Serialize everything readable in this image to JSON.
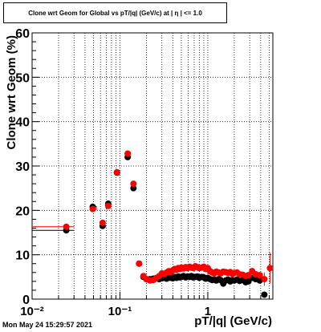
{
  "title": "Clone wrt Geom for Global vs pT/|q| (GeV/c) at | η | <= 1.0",
  "timestamp": "Mon May 24 15:29:57 2021",
  "colors": {
    "series_black": "#000000",
    "series_red": "#ff0000"
  },
  "chart_data": {
    "type": "scatter",
    "xlabel": "pT/|q| (GeV/c)",
    "ylabel": "Clone wrt Geom (%)",
    "x_scale": "log",
    "xlim": [
      0.01,
      5.5
    ],
    "ylim": [
      0,
      60
    ],
    "grid": true,
    "x_tick_labels": [
      "10⁻²",
      "10⁻¹",
      "1"
    ],
    "y_tick_labels": [
      "0",
      "10",
      "20",
      "30",
      "40",
      "50",
      "60"
    ],
    "series": [
      {
        "color": "#000000",
        "x": [
          0.0245,
          0.049,
          0.0635,
          0.0735,
          0.0925,
          0.1225,
          0.1425,
          0.165,
          0.185,
          0.2,
          0.22,
          0.24,
          0.26,
          0.28,
          0.3,
          0.32,
          0.34,
          0.36,
          0.38,
          0.4,
          0.42,
          0.44,
          0.46,
          0.48,
          0.5,
          0.53,
          0.56,
          0.59,
          0.62,
          0.65,
          0.68,
          0.72,
          0.76,
          0.8,
          0.85,
          0.9,
          0.95,
          1.0,
          1.06,
          1.12,
          1.18,
          1.25,
          1.33,
          1.4,
          1.5,
          1.6,
          1.7,
          1.8,
          1.9,
          2.0,
          2.15,
          2.3,
          2.5,
          2.7,
          2.9,
          3.2,
          3.5,
          3.9,
          4.4
        ],
        "y": [
          15.5,
          20.8,
          16.5,
          21.5,
          28.5,
          32.0,
          25.0,
          8.0,
          5.0,
          4.5,
          4.5,
          4.6,
          4.7,
          4.5,
          4.7,
          4.8,
          4.6,
          4.9,
          4.8,
          4.7,
          5.0,
          4.8,
          5.1,
          4.9,
          5.0,
          5.2,
          4.9,
          5.1,
          5.0,
          5.2,
          4.9,
          5.0,
          5.1,
          4.8,
          5.0,
          4.9,
          4.6,
          4.8,
          4.5,
          4.3,
          4.4,
          4.2,
          4.5,
          4.3,
          3.5,
          4.2,
          4.4,
          4.0,
          4.3,
          4.2,
          4.4,
          4.1,
          4.3,
          3.8,
          4.0,
          4.8,
          4.5,
          4.2,
          1.0
        ],
        "xerr": [
          [
            0.01,
            0.03
          ],
          [
            0.045,
            0.055
          ],
          null,
          null,
          [
            0.085,
            0.1
          ],
          [
            0.115,
            0.13
          ],
          null,
          null,
          null,
          null,
          null,
          null,
          null,
          null,
          null,
          null,
          null,
          null,
          null,
          null,
          null,
          null,
          null,
          null,
          null,
          null,
          null,
          null,
          null,
          null,
          null,
          null,
          null,
          null,
          null,
          null,
          null,
          null,
          null,
          null,
          null,
          null,
          null,
          null,
          null,
          null,
          null,
          null,
          null,
          null,
          null,
          null,
          null,
          null,
          null,
          null,
          null,
          null,
          null
        ]
      },
      {
        "color": "#ff0000",
        "x": [
          0.0245,
          0.049,
          0.0635,
          0.0735,
          0.0925,
          0.1225,
          0.1425,
          0.165,
          0.185,
          0.2,
          0.22,
          0.24,
          0.26,
          0.28,
          0.3,
          0.32,
          0.34,
          0.36,
          0.38,
          0.4,
          0.42,
          0.44,
          0.46,
          0.48,
          0.5,
          0.53,
          0.56,
          0.59,
          0.62,
          0.65,
          0.68,
          0.72,
          0.76,
          0.8,
          0.85,
          0.9,
          0.95,
          1.0,
          1.06,
          1.12,
          1.18,
          1.25,
          1.33,
          1.4,
          1.5,
          1.6,
          1.7,
          1.8,
          1.9,
          2.0,
          2.15,
          2.3,
          2.5,
          2.7,
          2.9,
          3.2,
          3.5,
          3.9,
          4.4,
          5.1
        ],
        "y": [
          16.3,
          20.3,
          17.2,
          21.0,
          28.6,
          32.8,
          26.0,
          8.0,
          5.2,
          4.5,
          4.2,
          4.3,
          4.8,
          5.2,
          5.8,
          5.7,
          6.0,
          6.3,
          6.1,
          6.5,
          6.8,
          6.6,
          7.0,
          6.8,
          7.1,
          6.9,
          7.2,
          7.0,
          7.3,
          7.1,
          7.0,
          7.4,
          7.2,
          7.0,
          7.1,
          7.3,
          6.8,
          7.0,
          6.3,
          6.0,
          5.8,
          6.2,
          6.0,
          5.8,
          6.2,
          6.1,
          5.9,
          6.1,
          5.7,
          5.9,
          6.0,
          5.6,
          5.5,
          5.2,
          5.4,
          6.3,
          5.6,
          5.4,
          4.5,
          7.0
        ],
        "xerr": [
          [
            0.01,
            0.03
          ],
          [
            0.045,
            0.055
          ],
          null,
          null,
          [
            0.085,
            0.1
          ],
          [
            0.115,
            0.13
          ],
          null,
          null,
          null,
          null,
          null,
          null,
          null,
          null,
          null,
          null,
          null,
          null,
          null,
          null,
          null,
          null,
          null,
          null,
          null,
          null,
          null,
          null,
          null,
          null,
          null,
          null,
          null,
          null,
          null,
          null,
          null,
          null,
          null,
          null,
          null,
          null,
          null,
          null,
          null,
          null,
          null,
          null,
          null,
          null,
          null,
          null,
          null,
          null,
          null,
          null,
          null,
          null,
          null,
          null
        ],
        "yerr": [
          null,
          null,
          null,
          null,
          null,
          null,
          null,
          null,
          null,
          null,
          null,
          null,
          null,
          null,
          null,
          null,
          null,
          null,
          null,
          null,
          null,
          null,
          null,
          null,
          null,
          null,
          null,
          null,
          null,
          null,
          null,
          null,
          null,
          null,
          null,
          null,
          null,
          null,
          null,
          null,
          null,
          null,
          null,
          null,
          null,
          null,
          null,
          null,
          null,
          null,
          null,
          null,
          null,
          null,
          null,
          null,
          null,
          null,
          1.5,
          3.5
        ]
      }
    ]
  }
}
